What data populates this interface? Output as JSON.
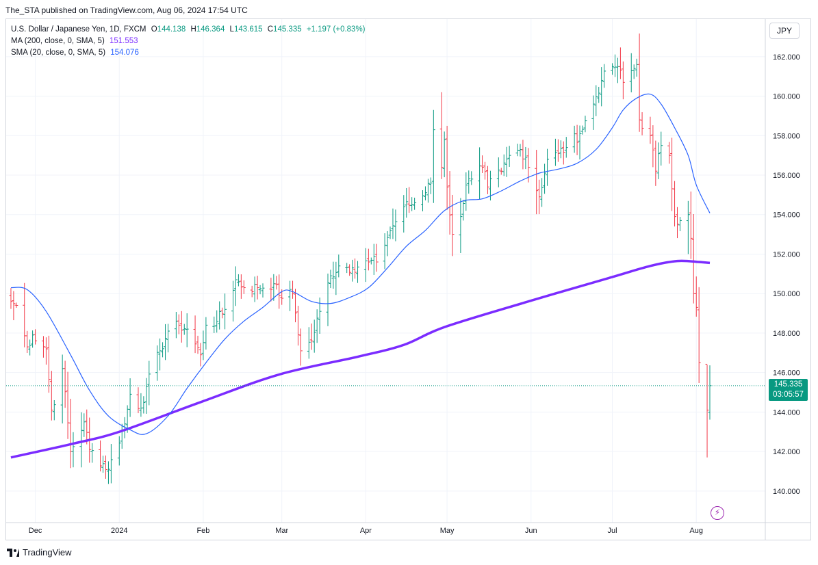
{
  "publisher_line": "The_STA published on TradingView.com, Aug 06, 2024 17:54 UTC",
  "legend": {
    "symbol": "U.S. Dollar / Japanese Yen, 1D, FXCM",
    "open_label": "O",
    "open": "144.138",
    "high_label": "H",
    "high": "146.364",
    "low_label": "L",
    "low": "143.615",
    "close_label": "C",
    "close": "145.335",
    "change": "+1.197 (+0.83%)",
    "ma200_label": "MA (200, close, 0, SMA, 5)",
    "ma200_value": "151.553",
    "sma20_label": "SMA (20, close, 0, SMA, 5)",
    "sma20_value": "154.076"
  },
  "currency_button": "JPY",
  "price_badge": {
    "price": "145.335",
    "countdown": "03:05:57"
  },
  "footer_brand": "TradingView",
  "colors": {
    "up": "#089981",
    "down": "#f23645",
    "ma200": "#7b2cff",
    "sma20": "#2962ff",
    "grid": "#f0f3fa"
  },
  "chart_data": {
    "type": "ohlc",
    "ylim": [
      138.4,
      163.9
    ],
    "y_ticks": [
      140,
      142,
      144,
      146,
      148,
      150,
      152,
      154,
      156,
      158,
      160,
      162
    ],
    "y_tick_labels": [
      "140.000",
      "142.000",
      "144.000",
      "146.000",
      "148.000",
      "150.000",
      "152.000",
      "154.000",
      "156.000",
      "158.000",
      "160.000",
      "162.000"
    ],
    "x_ticks": [
      {
        "label": "Dec",
        "date": "2023-12-01"
      },
      {
        "label": "2024",
        "date": "2024-01-01"
      },
      {
        "label": "Feb",
        "date": "2024-02-01"
      },
      {
        "label": "Mar",
        "date": "2024-03-01"
      },
      {
        "label": "Apr",
        "date": "2024-04-01"
      },
      {
        "label": "May",
        "date": "2024-05-01"
      },
      {
        "label": "Jun",
        "date": "2024-06-01"
      },
      {
        "label": "Jul",
        "date": "2024-07-01"
      },
      {
        "label": "Aug",
        "date": "2024-08-01"
      }
    ],
    "current_price": 145.335,
    "keypoints": [
      {
        "date": "2023-11-22",
        "c": 149.6
      },
      {
        "date": "2023-11-24",
        "c": 149.4
      },
      {
        "date": "2023-11-28",
        "c": 147.3
      },
      {
        "date": "2023-11-30",
        "c": 147.9
      },
      {
        "date": "2023-12-05",
        "c": 147.2
      },
      {
        "date": "2023-12-07",
        "c": 144.1
      },
      {
        "date": "2023-12-11",
        "c": 146.2
      },
      {
        "date": "2023-12-14",
        "c": 142.0
      },
      {
        "date": "2023-12-19",
        "c": 143.5
      },
      {
        "date": "2023-12-21",
        "c": 142.1
      },
      {
        "date": "2023-12-28",
        "c": 141.1
      },
      {
        "date": "2024-01-03",
        "c": 143.4
      },
      {
        "date": "2024-01-05",
        "c": 144.9
      },
      {
        "date": "2024-01-09",
        "c": 144.2
      },
      {
        "date": "2024-01-11",
        "c": 145.3
      },
      {
        "date": "2024-01-16",
        "c": 147.1
      },
      {
        "date": "2024-01-19",
        "c": 148.1
      },
      {
        "date": "2024-01-23",
        "c": 148.4
      },
      {
        "date": "2024-01-26",
        "c": 148.2
      },
      {
        "date": "2024-01-31",
        "c": 146.9
      },
      {
        "date": "2024-02-02",
        "c": 148.4
      },
      {
        "date": "2024-02-06",
        "c": 148.6
      },
      {
        "date": "2024-02-09",
        "c": 149.2
      },
      {
        "date": "2024-02-13",
        "c": 150.7
      },
      {
        "date": "2024-02-16",
        "c": 150.3
      },
      {
        "date": "2024-02-21",
        "c": 150.3
      },
      {
        "date": "2024-02-27",
        "c": 150.5
      },
      {
        "date": "2024-02-29",
        "c": 149.9
      },
      {
        "date": "2024-03-05",
        "c": 150.0
      },
      {
        "date": "2024-03-08",
        "c": 147.1
      },
      {
        "date": "2024-03-12",
        "c": 147.6
      },
      {
        "date": "2024-03-15",
        "c": 149.1
      },
      {
        "date": "2024-03-19",
        "c": 150.9
      },
      {
        "date": "2024-03-22",
        "c": 151.4
      },
      {
        "date": "2024-03-27",
        "c": 151.3
      },
      {
        "date": "2024-04-02",
        "c": 151.6
      },
      {
        "date": "2024-04-05",
        "c": 151.6
      },
      {
        "date": "2024-04-10",
        "c": 153.2
      },
      {
        "date": "2024-04-15",
        "c": 154.4
      },
      {
        "date": "2024-04-19",
        "c": 154.6
      },
      {
        "date": "2024-04-25",
        "c": 155.6
      },
      {
        "date": "2024-04-26",
        "c": 158.3
      },
      {
        "date": "2024-04-29",
        "c": 156.4
      },
      {
        "date": "2024-04-30",
        "c": 157.8
      },
      {
        "date": "2024-05-01",
        "c": 155.4
      },
      {
        "date": "2024-05-03",
        "c": 153.0
      },
      {
        "date": "2024-05-06",
        "c": 153.9
      },
      {
        "date": "2024-05-08",
        "c": 155.5
      },
      {
        "date": "2024-05-10",
        "c": 155.8
      },
      {
        "date": "2024-05-14",
        "c": 156.4
      },
      {
        "date": "2024-05-16",
        "c": 155.4
      },
      {
        "date": "2024-05-21",
        "c": 156.2
      },
      {
        "date": "2024-05-24",
        "c": 157.0
      },
      {
        "date": "2024-05-28",
        "c": 157.3
      },
      {
        "date": "2024-05-30",
        "c": 156.9
      },
      {
        "date": "2024-06-04",
        "c": 154.9
      },
      {
        "date": "2024-06-07",
        "c": 156.8
      },
      {
        "date": "2024-06-11",
        "c": 157.1
      },
      {
        "date": "2024-06-14",
        "c": 157.4
      },
      {
        "date": "2024-06-19",
        "c": 158.1
      },
      {
        "date": "2024-06-24",
        "c": 159.6
      },
      {
        "date": "2024-06-27",
        "c": 160.8
      },
      {
        "date": "2024-07-01",
        "c": 161.5
      },
      {
        "date": "2024-07-03",
        "c": 161.5
      },
      {
        "date": "2024-07-05",
        "c": 160.7
      },
      {
        "date": "2024-07-10",
        "c": 161.6
      },
      {
        "date": "2024-07-11",
        "c": 158.8
      },
      {
        "date": "2024-07-15",
        "c": 158.0
      },
      {
        "date": "2024-07-17",
        "c": 156.2
      },
      {
        "date": "2024-07-19",
        "c": 157.5
      },
      {
        "date": "2024-07-22",
        "c": 157.0
      },
      {
        "date": "2024-07-24",
        "c": 153.9
      },
      {
        "date": "2024-07-26",
        "c": 153.7
      },
      {
        "date": "2024-07-29",
        "c": 154.0
      },
      {
        "date": "2024-07-30",
        "c": 152.8
      },
      {
        "date": "2024-07-31",
        "c": 150.0
      },
      {
        "date": "2024-08-01",
        "c": 149.3
      },
      {
        "date": "2024-08-02",
        "c": 146.5
      },
      {
        "date": "2024-08-05",
        "c": 144.1
      },
      {
        "date": "2024-08-06",
        "c": 145.335
      }
    ],
    "ma200_points": [
      {
        "date": "2023-11-22",
        "v": 141.7
      },
      {
        "date": "2023-12-15",
        "v": 142.4
      },
      {
        "date": "2024-01-01",
        "v": 143.0
      },
      {
        "date": "2024-01-31",
        "v": 144.5
      },
      {
        "date": "2024-02-29",
        "v": 145.9
      },
      {
        "date": "2024-03-29",
        "v": 146.8
      },
      {
        "date": "2024-04-15",
        "v": 147.4
      },
      {
        "date": "2024-04-30",
        "v": 148.3
      },
      {
        "date": "2024-05-31",
        "v": 149.6
      },
      {
        "date": "2024-06-30",
        "v": 150.8
      },
      {
        "date": "2024-07-15",
        "v": 151.4
      },
      {
        "date": "2024-07-25",
        "v": 151.65
      },
      {
        "date": "2024-08-02",
        "v": 151.6
      },
      {
        "date": "2024-08-06",
        "v": 151.553
      }
    ],
    "sma20_points": [
      {
        "date": "2023-11-22",
        "v": 150.3
      },
      {
        "date": "2023-11-28",
        "v": 150.2
      },
      {
        "date": "2023-12-05",
        "v": 149.1
      },
      {
        "date": "2023-12-14",
        "v": 146.9
      },
      {
        "date": "2023-12-21",
        "v": 145.1
      },
      {
        "date": "2023-12-28",
        "v": 143.8
      },
      {
        "date": "2024-01-05",
        "v": 143.1
      },
      {
        "date": "2024-01-11",
        "v": 142.9
      },
      {
        "date": "2024-01-19",
        "v": 143.8
      },
      {
        "date": "2024-01-26",
        "v": 145.2
      },
      {
        "date": "2024-02-02",
        "v": 146.5
      },
      {
        "date": "2024-02-09",
        "v": 147.7
      },
      {
        "date": "2024-02-16",
        "v": 148.6
      },
      {
        "date": "2024-02-23",
        "v": 149.3
      },
      {
        "date": "2024-03-01",
        "v": 150.1
      },
      {
        "date": "2024-03-05",
        "v": 150.1
      },
      {
        "date": "2024-03-12",
        "v": 149.6
      },
      {
        "date": "2024-03-19",
        "v": 149.5
      },
      {
        "date": "2024-03-26",
        "v": 149.8
      },
      {
        "date": "2024-04-02",
        "v": 150.3
      },
      {
        "date": "2024-04-09",
        "v": 151.3
      },
      {
        "date": "2024-04-16",
        "v": 152.4
      },
      {
        "date": "2024-04-23",
        "v": 153.2
      },
      {
        "date": "2024-04-30",
        "v": 154.2
      },
      {
        "date": "2024-05-07",
        "v": 154.7
      },
      {
        "date": "2024-05-14",
        "v": 154.8
      },
      {
        "date": "2024-05-21",
        "v": 155.2
      },
      {
        "date": "2024-05-28",
        "v": 155.7
      },
      {
        "date": "2024-06-04",
        "v": 156.1
      },
      {
        "date": "2024-06-11",
        "v": 156.3
      },
      {
        "date": "2024-06-18",
        "v": 156.6
      },
      {
        "date": "2024-06-25",
        "v": 157.3
      },
      {
        "date": "2024-07-01",
        "v": 158.4
      },
      {
        "date": "2024-07-05",
        "v": 159.3
      },
      {
        "date": "2024-07-10",
        "v": 159.9
      },
      {
        "date": "2024-07-15",
        "v": 160.1
      },
      {
        "date": "2024-07-19",
        "v": 159.6
      },
      {
        "date": "2024-07-24",
        "v": 158.4
      },
      {
        "date": "2024-07-29",
        "v": 157.0
      },
      {
        "date": "2024-08-01",
        "v": 155.5
      },
      {
        "date": "2024-08-06",
        "v": 154.076
      }
    ]
  }
}
